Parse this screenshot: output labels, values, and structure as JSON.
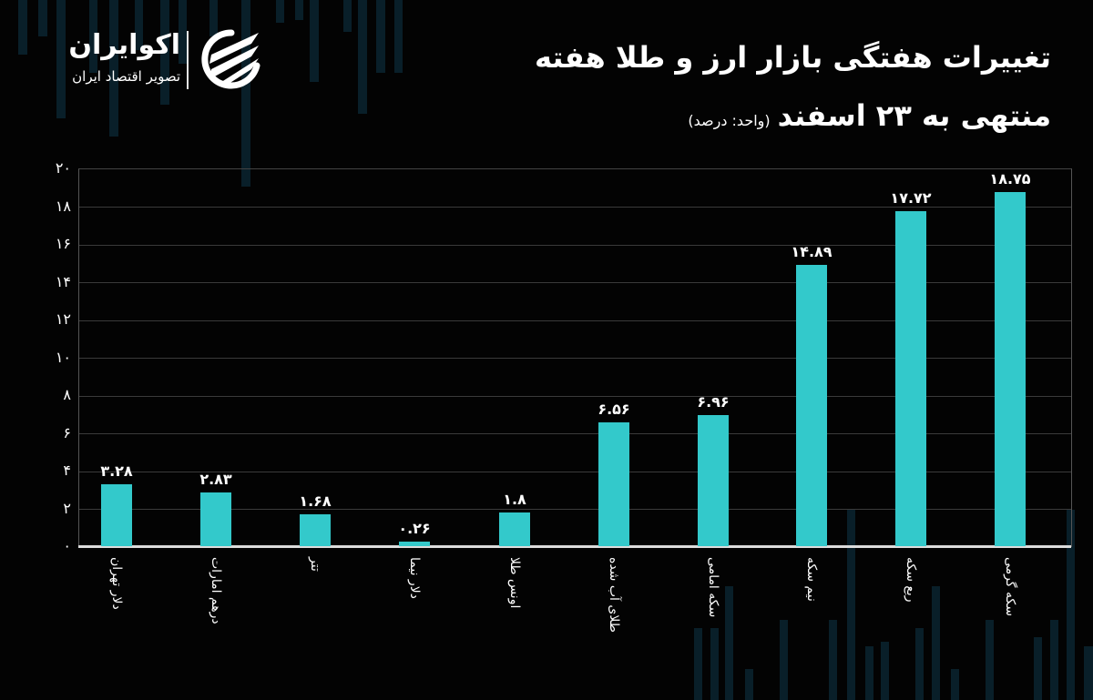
{
  "brand": {
    "name": "اکوایران",
    "tagline": "تصویر اقتصاد ایران",
    "icon": "ecoiran-logo-icon"
  },
  "header": {
    "title": "تغییرات هفتگی بازار ارز و طلا هفته",
    "subtitle": "منتهی به ۲۳ اسفند",
    "unit": "(واحد: درصد)"
  },
  "colors": {
    "background": "#030303",
    "bar": "#33c9cb",
    "text": "#ffffff",
    "grid": "#3a3a3a"
  },
  "chart_data": {
    "type": "bar",
    "title": "تغییرات هفتگی بازار ارز و طلا هفته منتهی به ۲۳ اسفند",
    "subtitle": "(واحد: درصد)",
    "xlabel": "",
    "ylabel": "درصد",
    "ylim": [
      0,
      20
    ],
    "grid": true,
    "legend": "none",
    "y_ticks": [
      "۰",
      "۲",
      "۴",
      "۶",
      "۸",
      "۱۰",
      "۱۲",
      "۱۴",
      "۱۶",
      "۱۸",
      "۲۰"
    ],
    "categories": [
      "دلار تهران",
      "درهم امارات",
      "تتر",
      "دلار نیما",
      "اونس طلا",
      "طلای آب شده",
      "سکه امامی",
      "نیم سکه",
      "ربع سکه",
      "سکه گرمی"
    ],
    "values": [
      3.28,
      2.83,
      1.68,
      0.26,
      1.8,
      6.56,
      6.96,
      14.89,
      17.72,
      18.75
    ],
    "value_labels": [
      "۳.۲۸",
      "۲.۸۳",
      "۱.۶۸",
      "۰.۲۶",
      "۱.۸",
      "۶.۵۶",
      "۶.۹۶",
      "۱۴.۸۹",
      "۱۷.۷۲",
      "۱۸.۷۵"
    ]
  }
}
